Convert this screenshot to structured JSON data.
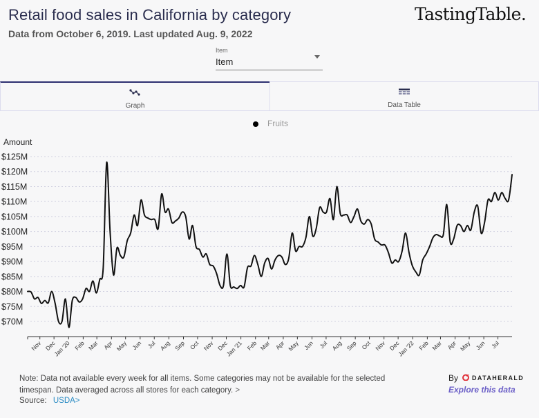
{
  "header": {
    "title": "Retail food sales in California by category",
    "subtitle": "Data from October 6, 2019. Last updated Aug. 9, 2022",
    "brand": "TastingTable."
  },
  "filter": {
    "label": "Item",
    "value": "Item"
  },
  "tabs": [
    {
      "label": "Graph",
      "icon": "line-chart-icon",
      "active": true
    },
    {
      "label": "Data Table",
      "icon": "table-icon",
      "active": false
    }
  ],
  "footer": {
    "note": "Note: Data not available every week for all items. Some categories may not be available for the selected timespan. Data averaged across all stores for each category.",
    "note_more": ">",
    "source_label": "Source:",
    "source_link": "USDA",
    "source_arrow": ">",
    "by_label": "By",
    "by_brand": "DATAHERALD",
    "explore": "Explore this data"
  },
  "colors": {
    "line": "#111111",
    "title": "#2a2d4e",
    "tab_active": "#2a2d6e",
    "link": "#2b8cc4",
    "explore": "#6b5fc7",
    "grid": "#d0d0e0"
  },
  "chart_data": {
    "type": "line",
    "title": "Retail food sales in California by category",
    "ylabel": "Amount",
    "xlabel": "",
    "ylim": [
      66,
      125
    ],
    "yticks": [
      70,
      75,
      80,
      85,
      90,
      95,
      100,
      105,
      110,
      115,
      120,
      125
    ],
    "ytick_labels": [
      "$70M",
      "$75M",
      "$80M",
      "$85M",
      "$90M",
      "$95M",
      "$100M",
      "$105M",
      "$110M",
      "$115M",
      "$120M",
      "$125M"
    ],
    "x_start": "2019-10-06",
    "x_end": "2022-07-31",
    "xtick_labels": [
      "Nov",
      "Dec",
      "Jan '20",
      "Feb",
      "Mar",
      "Apr",
      "May",
      "Jun",
      "Jul",
      "Aug",
      "Sep",
      "Oct",
      "Nov",
      "Dec",
      "Jan '21",
      "Feb",
      "Mar",
      "Apr",
      "May",
      "Jun",
      "Jul",
      "Aug",
      "Sep",
      "Oct",
      "Nov",
      "Dec",
      "Jan '22",
      "Feb",
      "Mar",
      "Apr",
      "May",
      "Jun",
      "Jul"
    ],
    "grid": "horizontal-dotted",
    "legend": "top-center",
    "series": [
      {
        "name": "Fruits",
        "frequency": "weekly",
        "unit": "USD millions",
        "values": [
          80,
          79.8,
          77.5,
          78,
          76,
          77,
          76.2,
          80,
          76,
          70,
          70,
          77.5,
          68,
          77,
          78,
          76.5,
          77.5,
          81,
          80,
          83.5,
          79.5,
          84,
          88,
          123,
          100,
          85.5,
          94.5,
          92,
          91.5,
          97,
          99.5,
          105.5,
          102,
          110.5,
          105.5,
          104.5,
          104,
          104,
          101,
          112.5,
          106.5,
          107.5,
          103,
          103.5,
          104.5,
          106.5,
          105,
          97.5,
          102,
          95,
          94,
          91.5,
          92.5,
          89,
          88.5,
          86,
          82,
          82,
          92.5,
          82,
          81.5,
          81,
          82,
          81.5,
          88,
          88.5,
          92,
          89,
          85,
          89.5,
          91,
          87.5,
          90.5,
          92,
          91.5,
          89,
          91,
          99.5,
          93.5,
          95,
          95,
          98,
          105,
          98.5,
          101,
          108,
          106.5,
          106.5,
          111,
          104,
          115,
          106,
          105.5,
          105.5,
          103,
          105,
          107.5,
          103.5,
          102.5,
          104,
          102.5,
          97.5,
          96.5,
          95.5,
          95.5,
          93,
          89.5,
          90.5,
          90,
          93.5,
          99.5,
          93,
          88.5,
          86.5,
          85.5,
          90.5,
          92.5,
          95,
          98,
          99,
          98.5,
          99,
          109,
          96.5,
          97.5,
          102,
          102,
          100,
          102,
          100.5,
          106.5,
          108.5,
          99.5,
          103,
          110.5,
          110,
          113,
          110.5,
          113,
          111,
          110.5,
          119
        ]
      }
    ]
  }
}
